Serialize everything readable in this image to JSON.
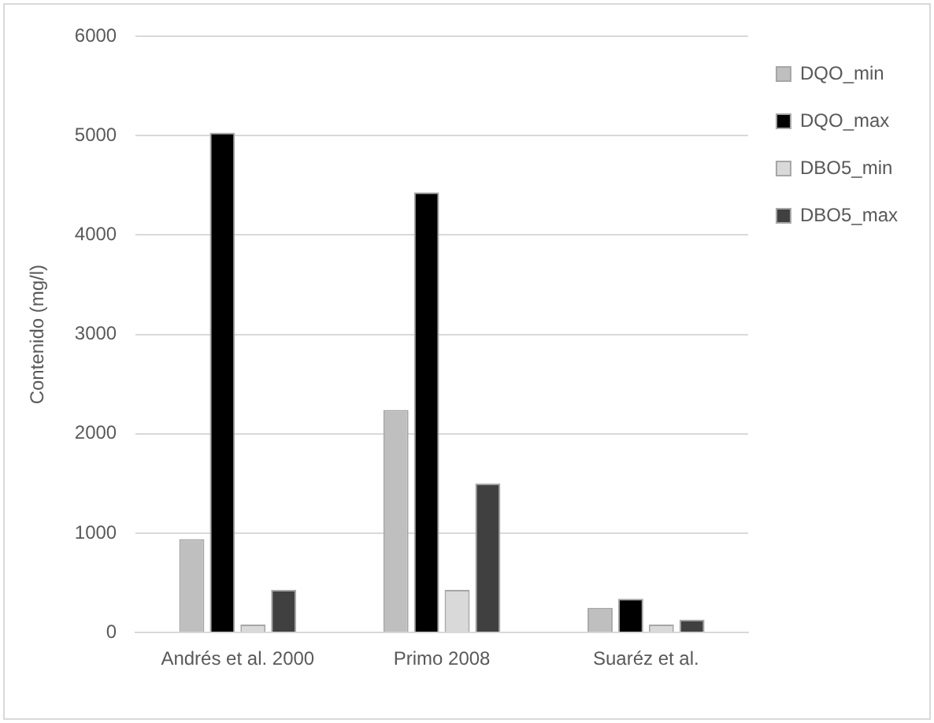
{
  "chart_data": {
    "type": "bar",
    "ylabel": "Contenido (mg/l)",
    "categories": [
      "Andrés et al. 2000",
      "Primo 2008",
      "Suaréz et al."
    ],
    "series": [
      {
        "name": "DQO_min",
        "color": "#bfbfbf",
        "values": [
          940,
          2240,
          250
        ]
      },
      {
        "name": "DQO_max",
        "color": "#000000",
        "values": [
          5030,
          4430,
          340
        ]
      },
      {
        "name": "DBO5_min",
        "color": "#d9d9d9",
        "values": [
          80,
          430,
          80
        ]
      },
      {
        "name": "DBO5_max",
        "color": "#404040",
        "values": [
          430,
          1500,
          130
        ]
      }
    ],
    "ylim": [
      0,
      6000
    ],
    "yticks": [
      0,
      1000,
      2000,
      3000,
      4000,
      5000,
      6000
    ],
    "grid": "y",
    "legend": "top right"
  }
}
